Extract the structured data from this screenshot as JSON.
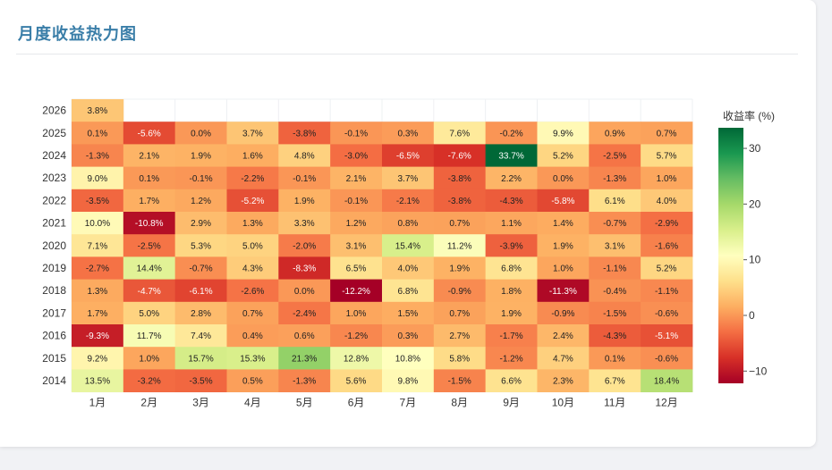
{
  "card": {
    "title": "月度收益热力图"
  },
  "chart_data": {
    "type": "heatmap",
    "months": [
      "1月",
      "2月",
      "3月",
      "4月",
      "5月",
      "6月",
      "7月",
      "8月",
      "9月",
      "10月",
      "11月",
      "12月"
    ],
    "years": [
      "2026",
      "2025",
      "2024",
      "2023",
      "2022",
      "2021",
      "2020",
      "2019",
      "2018",
      "2017",
      "2016",
      "2015",
      "2014"
    ],
    "values": [
      [
        3.8,
        null,
        null,
        null,
        null,
        null,
        null,
        null,
        null,
        null,
        null,
        null
      ],
      [
        0.1,
        -5.6,
        0.0,
        3.7,
        -3.8,
        -0.1,
        0.3,
        7.6,
        -0.2,
        9.9,
        0.9,
        0.7
      ],
      [
        -1.3,
        2.1,
        1.9,
        1.6,
        4.8,
        -3.0,
        -6.5,
        -7.6,
        33.7,
        5.2,
        -2.5,
        5.7
      ],
      [
        9.0,
        0.1,
        -0.1,
        -2.2,
        -0.1,
        2.1,
        3.7,
        -3.8,
        2.2,
        0.0,
        -1.3,
        1.0
      ],
      [
        -3.5,
        1.7,
        1.2,
        -5.2,
        1.9,
        -0.1,
        -2.1,
        -3.8,
        -4.3,
        -5.8,
        6.1,
        4.0
      ],
      [
        10.0,
        -10.8,
        2.9,
        1.3,
        3.3,
        1.2,
        0.8,
        0.7,
        1.1,
        1.4,
        -0.7,
        -2.9
      ],
      [
        7.1,
        -2.5,
        5.3,
        5.0,
        -2.0,
        3.1,
        15.4,
        11.2,
        -3.9,
        1.9,
        3.1,
        -1.6
      ],
      [
        -2.7,
        14.4,
        -0.7,
        4.3,
        -8.3,
        6.5,
        4.0,
        1.9,
        6.8,
        1.0,
        -1.1,
        5.2
      ],
      [
        1.3,
        -4.7,
        -6.1,
        -2.6,
        0.0,
        -12.2,
        6.8,
        -0.9,
        1.8,
        -11.3,
        -0.4,
        -1.1
      ],
      [
        1.7,
        5.0,
        2.8,
        0.7,
        -2.4,
        1.0,
        1.5,
        0.7,
        1.9,
        -0.9,
        -1.5,
        -0.6
      ],
      [
        -9.3,
        11.7,
        7.4,
        0.4,
        0.6,
        -1.2,
        0.3,
        2.7,
        -1.7,
        2.4,
        -4.3,
        -5.1
      ],
      [
        9.2,
        1.0,
        15.7,
        15.3,
        21.3,
        12.8,
        10.8,
        5.8,
        -1.2,
        4.7,
        0.1,
        -0.6
      ],
      [
        13.5,
        -3.2,
        -3.5,
        0.5,
        -1.3,
        5.6,
        9.8,
        -1.5,
        6.6,
        2.3,
        6.7,
        18.4
      ]
    ],
    "value_suffix": "%",
    "colorbar": {
      "title": "收益率 (%)",
      "range": [
        -12.2,
        33.7
      ],
      "ticks": [
        30,
        20,
        10,
        0,
        -10
      ],
      "tick_labels": [
        "30",
        "20",
        "10",
        "0",
        "−10"
      ]
    },
    "colorscale": [
      "#a50026",
      "#d73027",
      "#f46d43",
      "#fdae61",
      "#fee08b",
      "#ffffbf",
      "#d9ef8b",
      "#a6d96a",
      "#66bd63",
      "#1a9850",
      "#006837"
    ]
  }
}
